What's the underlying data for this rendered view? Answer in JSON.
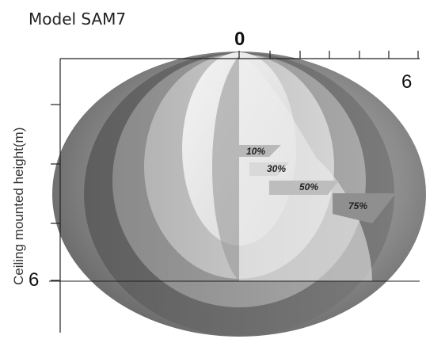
{
  "title": "Model SAM7",
  "axes": {
    "top_start": "0",
    "top_end": "6",
    "left_end": "6",
    "vertical_label": "Ceiling mounted height(m)"
  },
  "zones": [
    {
      "label": "10%"
    },
    {
      "label": "30%"
    },
    {
      "label": "50%"
    },
    {
      "label": "75%"
    }
  ],
  "colors": {
    "outer_shell": "#8a8a8a",
    "band_dark": "#6f6f6f",
    "band_mid": "#9d9d9d",
    "band_light": "#c4c4c4",
    "inner_core": "#e6e6e6",
    "background": "#ffffff"
  }
}
